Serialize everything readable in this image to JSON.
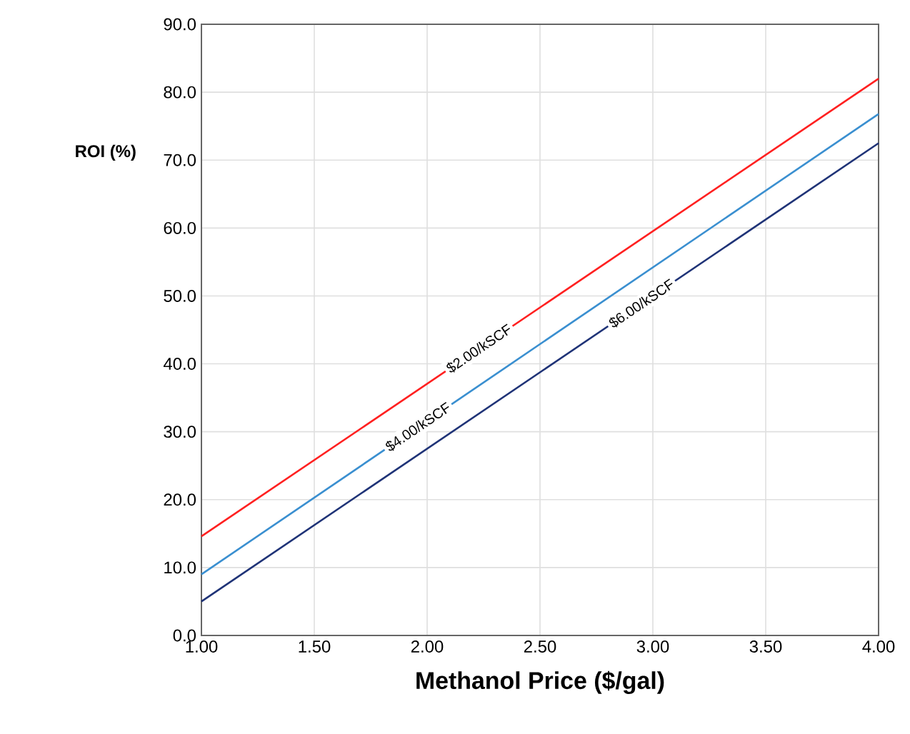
{
  "chart_data": {
    "type": "line",
    "xlabel": "Methanol Price ($/gal)",
    "ylabel": "ROI (%)",
    "x": [
      1.0,
      4.0
    ],
    "series": [
      {
        "name": "$2.00/kSCF",
        "color": "#ff2020",
        "values": [
          14.6,
          82.0
        ]
      },
      {
        "name": "$4.00/kSCF",
        "color": "#3a8fd0",
        "values": [
          9.0,
          76.8
        ]
      },
      {
        "name": "$6.00/kSCF",
        "color": "#1f3377",
        "values": [
          5.0,
          72.5
        ]
      }
    ],
    "xlim": [
      1.0,
      4.0
    ],
    "ylim": [
      0,
      90
    ],
    "xticks": [
      {
        "value": 1.0,
        "label": "1.00"
      },
      {
        "value": 1.5,
        "label": "1.50"
      },
      {
        "value": 2.0,
        "label": "2.00"
      },
      {
        "value": 2.5,
        "label": "2.50"
      },
      {
        "value": 3.0,
        "label": "3.00"
      },
      {
        "value": 3.5,
        "label": "3.50"
      },
      {
        "value": 4.0,
        "label": "4.00"
      }
    ],
    "yticks": [
      {
        "value": 0,
        "label": "0.0"
      },
      {
        "value": 10,
        "label": "10.0"
      },
      {
        "value": 20,
        "label": "20.0"
      },
      {
        "value": 30,
        "label": "30.0"
      },
      {
        "value": 40,
        "label": "40.0"
      },
      {
        "value": 50,
        "label": "50.0"
      },
      {
        "value": 60,
        "label": "60.0"
      },
      {
        "value": 70,
        "label": "70.0"
      },
      {
        "value": 80,
        "label": "80.0"
      },
      {
        "value": 90,
        "label": "90.0"
      }
    ],
    "grid": true,
    "legend": false,
    "marker": "none",
    "line_style": "solid"
  }
}
